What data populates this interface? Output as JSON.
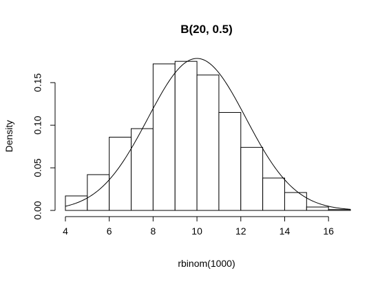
{
  "chart_data": {
    "type": "bar",
    "subtype": "histogram",
    "title": "B(20, 0.5)",
    "xlabel": "rbinom(1000)",
    "ylabel": "Density",
    "xlim": [
      4,
      17
    ],
    "ylim": [
      0,
      0.18
    ],
    "xticks": [
      4,
      6,
      8,
      10,
      12,
      14,
      16
    ],
    "yticks": [
      0.0,
      0.05,
      0.1,
      0.15
    ],
    "xtick_labels": [
      "4",
      "6",
      "8",
      "10",
      "12",
      "14",
      "16"
    ],
    "ytick_labels": [
      "0.00",
      "0.05",
      "0.10",
      "0.15"
    ],
    "bins": [
      {
        "start": 4,
        "end": 5,
        "density": 0.017
      },
      {
        "start": 5,
        "end": 6,
        "density": 0.042
      },
      {
        "start": 6,
        "end": 7,
        "density": 0.086
      },
      {
        "start": 7,
        "end": 8,
        "density": 0.096
      },
      {
        "start": 8,
        "end": 9,
        "density": 0.172
      },
      {
        "start": 9,
        "end": 10,
        "density": 0.175
      },
      {
        "start": 10,
        "end": 11,
        "density": 0.159
      },
      {
        "start": 11,
        "end": 12,
        "density": 0.115
      },
      {
        "start": 12,
        "end": 13,
        "density": 0.074
      },
      {
        "start": 13,
        "end": 14,
        "density": 0.038
      },
      {
        "start": 14,
        "end": 15,
        "density": 0.021
      },
      {
        "start": 15,
        "end": 16,
        "density": 0.004
      },
      {
        "start": 16,
        "end": 17,
        "density": 0.001
      }
    ],
    "overlay_curve": {
      "type": "normal-density",
      "mean": 10,
      "sd": 2.236,
      "x_range": [
        4,
        17
      ]
    },
    "grid": false,
    "legend": "none"
  }
}
